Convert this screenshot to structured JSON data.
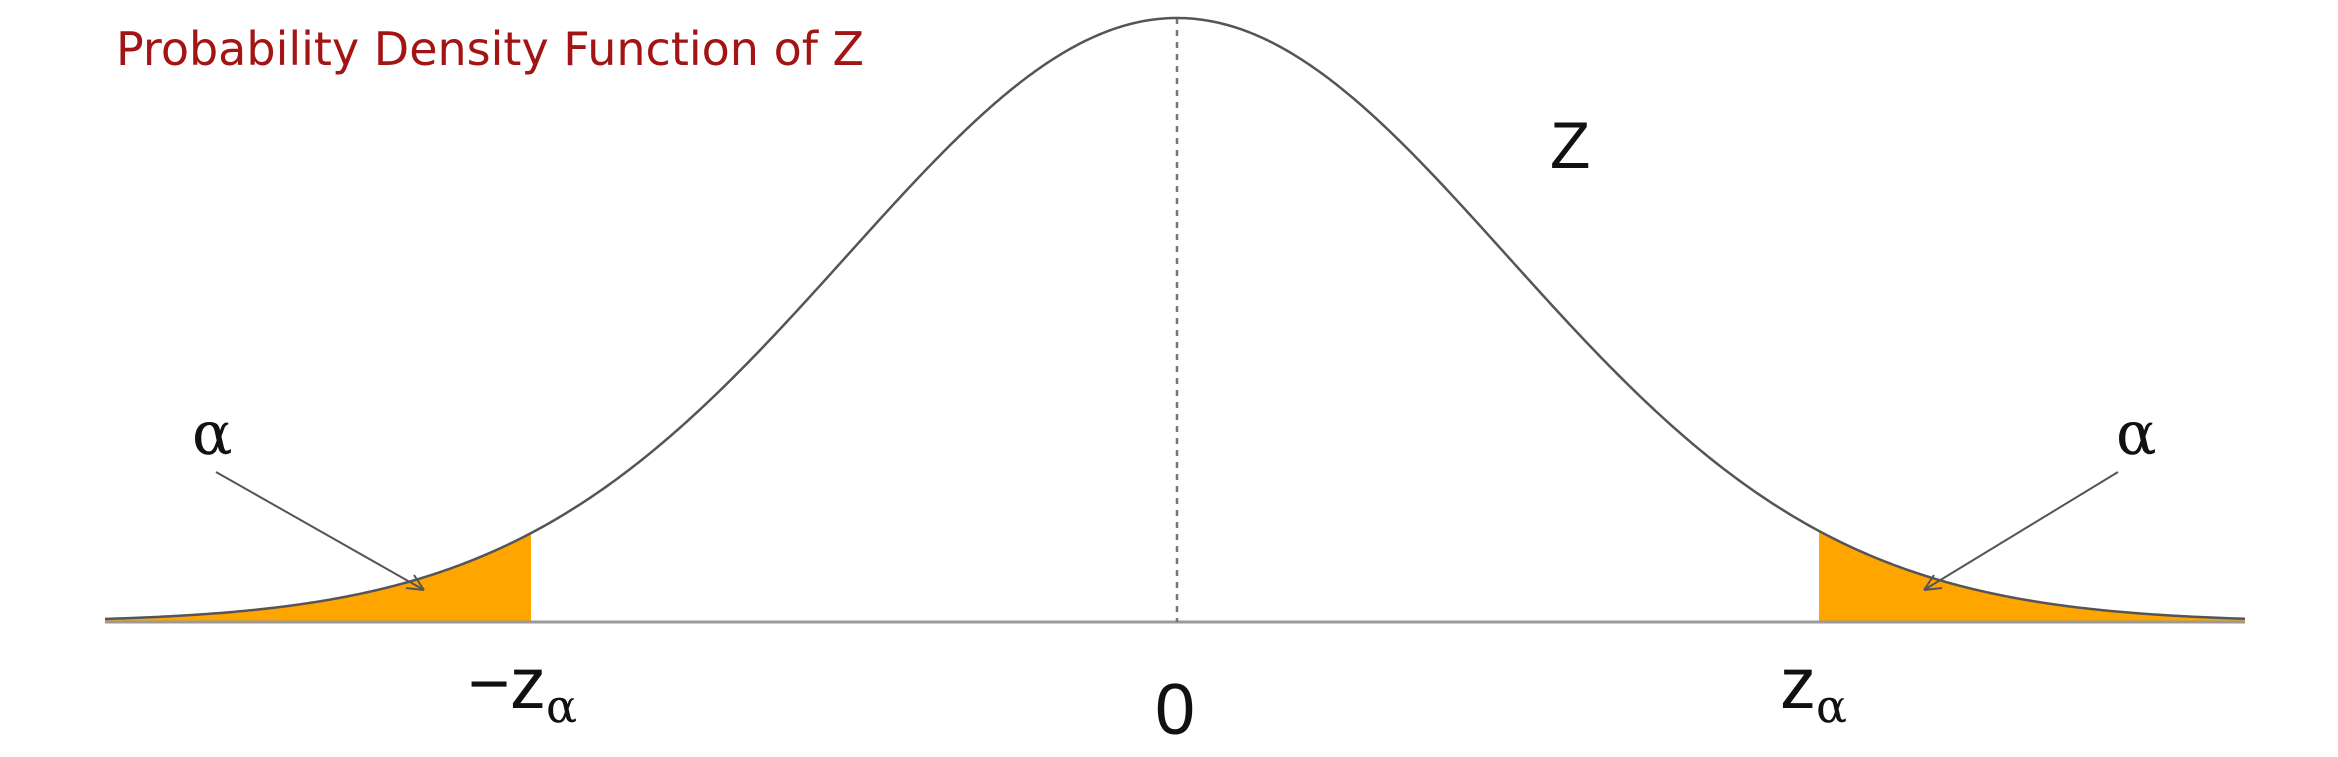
{
  "title": "Probability Density Function of Z",
  "curve_label": "Z",
  "tail_labels": {
    "left": "α",
    "right": "α"
  },
  "axis_labels": {
    "left": {
      "prefix": "−z",
      "subscript": "α"
    },
    "center": "0",
    "right": {
      "prefix": "z",
      "subscript": "α"
    }
  },
  "colors": {
    "title": "#a31515",
    "tail_fill": "#ffa500",
    "curve": "#555555",
    "axis": "#999999"
  }
}
